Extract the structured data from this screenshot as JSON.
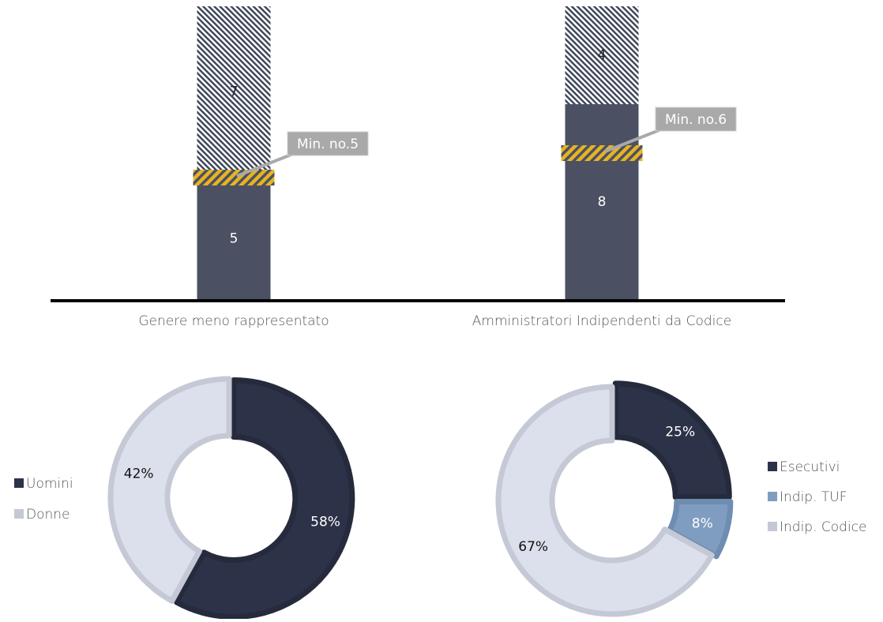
{
  "colors": {
    "dark": "#4B5063",
    "navy": "#2C3247",
    "light": "#DCE0EC",
    "ring_border": "#C5C9D6",
    "steel": "#7F9DC0",
    "hatch_fg": "#3A4256",
    "gold": "#E6B422",
    "callout": "#A9A9A9",
    "text": "#555555"
  },
  "chart_data": [
    {
      "type": "bar",
      "stacked": true,
      "categories": [
        "Genere meno rappresentato",
        "Amministratori Indipendenti da Codice"
      ],
      "series": [
        {
          "values": [
            5,
            8
          ],
          "value_labels": [
            "5",
            "8"
          ],
          "fill": "solid-dark"
        },
        {
          "values": [
            7,
            4
          ],
          "value_labels": [
            "7",
            "4"
          ],
          "fill": "hatched"
        }
      ],
      "minimum_markers": [
        {
          "value": 5,
          "label": "Min. no.5"
        },
        {
          "value": 6,
          "label": "Min. no.6"
        }
      ],
      "ylim": [
        0,
        12
      ],
      "grid": false,
      "legend": "none"
    },
    {
      "type": "pie",
      "donut": true,
      "labels": [
        "Uomini",
        "Donne"
      ],
      "values": [
        58,
        42
      ],
      "value_labels": [
        "58%",
        "42%"
      ],
      "colors": [
        "#2C3247",
        "#DCE0EC"
      ],
      "legend": "left"
    },
    {
      "type": "pie",
      "donut": true,
      "labels": [
        "Esecutivi",
        "Indip. TUF",
        "Indip. Codice"
      ],
      "values": [
        25,
        8,
        67
      ],
      "value_labels": [
        "25%",
        "8%",
        "67%"
      ],
      "colors": [
        "#2C3247",
        "#7F9DC0",
        "#DCE0EC"
      ],
      "legend": "right"
    }
  ]
}
